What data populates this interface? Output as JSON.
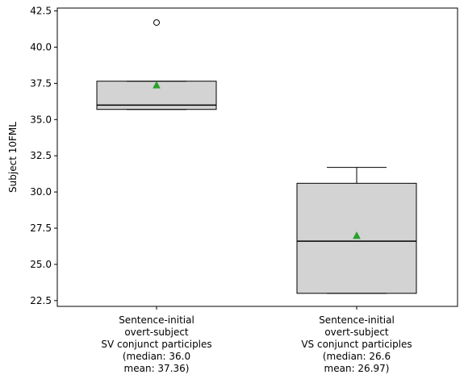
{
  "chart_data": {
    "type": "box",
    "title": "",
    "xlabel": "",
    "ylabel": "Subject 10FML",
    "ylim": [
      22.1,
      42.7
    ],
    "yticks": [
      22.5,
      25.0,
      27.5,
      30.0,
      32.5,
      35.0,
      37.5,
      40.0,
      42.5
    ],
    "ytick_labels": [
      "22.5",
      "25.0",
      "27.5",
      "30.0",
      "32.5",
      "35.0",
      "37.5",
      "40.0",
      "42.5"
    ],
    "grid": false,
    "legend": "none",
    "colors": {
      "box_fill": "#d3d3d3",
      "box_edge": "#000000",
      "median_line": "#000000",
      "mean_marker": "#2ca02c",
      "outlier_edge": "#000000"
    },
    "categories": [
      {
        "label_lines": [
          "Sentence-initial",
          "overt-subject",
          "SV conjunct participles",
          "(median: 36.0",
          "mean: 37.36)"
        ],
        "whisker_low": 35.7,
        "q1": 35.7,
        "median": 36.0,
        "q3": 37.65,
        "whisker_high": 37.65,
        "mean": 37.36,
        "outliers": [
          41.7
        ]
      },
      {
        "label_lines": [
          "Sentence-initial",
          "overt-subject",
          "VS conjunct participles",
          "(median: 26.6",
          "mean: 26.97)"
        ],
        "whisker_low": 23.0,
        "q1": 23.0,
        "median": 26.6,
        "q3": 30.6,
        "whisker_high": 31.7,
        "mean": 26.97,
        "outliers": []
      }
    ]
  }
}
